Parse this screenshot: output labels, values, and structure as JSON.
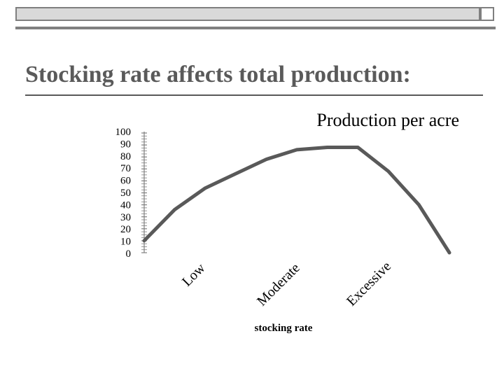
{
  "slide": {
    "title": "Stocking rate affects total production:"
  },
  "theme": {
    "title_color": "#5a5a5a",
    "line_color": "#595959",
    "band_color": "#d9d9d9",
    "band_border": "#7f7f7f"
  },
  "chart_data": {
    "type": "line",
    "title": "Production per acre",
    "xlabel": "stocking rate",
    "ylabel": "",
    "ylim": [
      0,
      100
    ],
    "yticks": [
      "100",
      "90",
      "80",
      "70",
      "60",
      "50",
      "40",
      "30",
      "20",
      "10",
      "0"
    ],
    "x_category_labels": [
      "Low",
      "Moderate",
      "Excessive"
    ],
    "grid": false,
    "series": [
      {
        "values": [
          10,
          36,
          54,
          66,
          78,
          86,
          88,
          88,
          68,
          40,
          0
        ]
      }
    ]
  }
}
